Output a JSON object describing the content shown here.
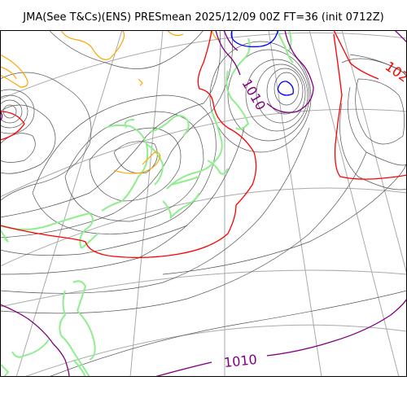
{
  "title": "JMA(See T&Cs)(ENS) PRESmean 2025/12/09 00Z FT=36 (init 0712Z)",
  "contour_labels": [
    {
      "text": "1010",
      "color": "#800080"
    },
    {
      "text": "102",
      "color": "#ff0000"
    },
    {
      "text": "1010",
      "color": "#800080"
    }
  ],
  "colors": {
    "isobar_thin": "#555555",
    "isobar_1020": "#ff0000",
    "isobar_1010": "#800080",
    "low_center": "#0000ff",
    "coastline": "#90ee90",
    "high_ground": "#ffa500",
    "graticule": "#aaaaaa"
  }
}
